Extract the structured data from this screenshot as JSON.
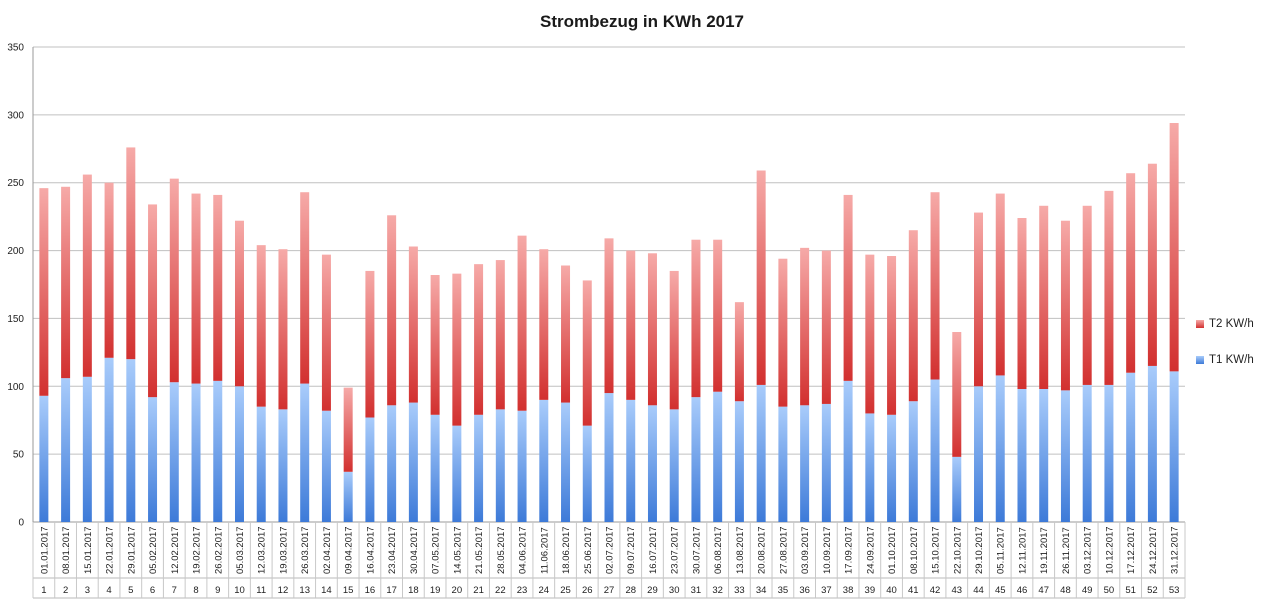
{
  "chart_data": {
    "type": "bar",
    "stacked": true,
    "title": "Strombezug in KWh 2017",
    "xlabel": "",
    "ylabel": "",
    "ylim": [
      0,
      350
    ],
    "yticks": [
      0,
      50,
      100,
      150,
      200,
      250,
      300,
      350
    ],
    "grid": true,
    "legend_position": "right",
    "dates": [
      "01.01.2017",
      "08.01.2017",
      "15.01.2017",
      "22.01.2017",
      "29.01.2017",
      "05.02.2017",
      "12.02.2017",
      "19.02.2017",
      "26.02.2017",
      "05.03.2017",
      "12.03.2017",
      "19.03.2017",
      "26.03.2017",
      "02.04.2017",
      "09.04.2017",
      "16.04.2017",
      "23.04.2017",
      "30.04.2017",
      "07.05.2017",
      "14.05.2017",
      "21.05.2017",
      "28.05.2017",
      "04.06.2017",
      "11.06.2017",
      "18.06.2017",
      "25.06.2017",
      "02.07.2017",
      "09.07.2017",
      "16.07.2017",
      "23.07.2017",
      "30.07.2017",
      "06.08.2017",
      "13.08.2017",
      "20.08.2017",
      "27.08.2017",
      "03.09.2017",
      "10.09.2017",
      "17.09.2017",
      "24.09.2017",
      "01.10.2017",
      "08.10.2017",
      "15.10.2017",
      "22.10.2017",
      "29.10.2017",
      "05.11.2017",
      "12.11.2017",
      "19.11.2017",
      "26.11.2017",
      "03.12.2017",
      "10.12.2017",
      "17.12.2017",
      "24.12.2017",
      "31.12.2017"
    ],
    "weeks": [
      "1",
      "2",
      "3",
      "4",
      "5",
      "6",
      "7",
      "8",
      "9",
      "10",
      "11",
      "12",
      "13",
      "14",
      "15",
      "16",
      "17",
      "18",
      "19",
      "20",
      "21",
      "22",
      "23",
      "24",
      "25",
      "26",
      "27",
      "28",
      "29",
      "30",
      "31",
      "32",
      "33",
      "34",
      "35",
      "36",
      "37",
      "38",
      "39",
      "40",
      "41",
      "42",
      "43",
      "44",
      "45",
      "46",
      "47",
      "48",
      "49",
      "50",
      "51",
      "52",
      "53"
    ],
    "series": [
      {
        "name": "T1 KW/h",
        "color": "#4a86e0",
        "values": [
          93,
          106,
          107,
          121,
          120,
          92,
          103,
          102,
          104,
          100,
          85,
          83,
          102,
          82,
          37,
          77,
          86,
          88,
          79,
          71,
          79,
          83,
          82,
          90,
          88,
          71,
          95,
          90,
          86,
          83,
          92,
          96,
          89,
          101,
          85,
          86,
          87,
          104,
          80,
          79,
          89,
          105,
          48,
          100,
          108,
          98,
          98,
          97,
          101,
          101,
          110,
          115,
          111
        ]
      },
      {
        "name": "T2 KW/h",
        "color": "#d9383a",
        "values": [
          153,
          141,
          149,
          129,
          156,
          142,
          150,
          140,
          137,
          122,
          119,
          118,
          141,
          115,
          62,
          108,
          140,
          115,
          103,
          112,
          111,
          110,
          129,
          111,
          101,
          107,
          114,
          110,
          112,
          102,
          116,
          112,
          73,
          158,
          109,
          116,
          113,
          137,
          117,
          117,
          126,
          138,
          92,
          128,
          134,
          126,
          135,
          125,
          132,
          143,
          147,
          149,
          183
        ]
      }
    ]
  }
}
